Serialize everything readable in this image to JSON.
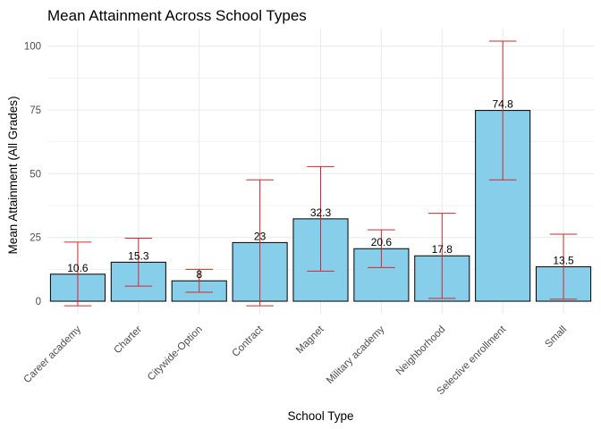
{
  "chart_data": {
    "type": "bar",
    "title": "Mean Attainment Across School Types",
    "xlabel": "School Type",
    "ylabel": "Mean Attainment (All Grades)",
    "categories": [
      "Career academy",
      "Charter",
      "Citywide-Option",
      "Contract",
      "Magnet",
      "Military academy",
      "Neighborhood",
      "Selective enrollment",
      "Small"
    ],
    "values": [
      10.6,
      15.3,
      8,
      23,
      32.3,
      20.6,
      17.8,
      74.8,
      13.5
    ],
    "data_labels": [
      "10.6",
      "15.3",
      "8",
      "23",
      "32.3",
      "20.6",
      "17.8",
      "74.8",
      "13.5"
    ],
    "error_low": [
      -1.8,
      5.9,
      3.5,
      -1.8,
      11.8,
      13.2,
      1.1,
      47.6,
      0.8
    ],
    "error_high": [
      23.2,
      24.7,
      12.5,
      47.6,
      52.8,
      28.0,
      34.5,
      102.0,
      26.3
    ],
    "ylim": [
      -4.9,
      106.9
    ],
    "yticks": [
      0,
      25,
      50,
      75,
      100
    ],
    "ytick_labels": [
      "0",
      "25",
      "50",
      "75",
      "100"
    ],
    "grid": true,
    "legend": "none",
    "colors": {
      "bar_fill": "#87ceeb",
      "bar_stroke": "#000000",
      "error_bar": "#d62728",
      "grid": "#ebebeb"
    }
  }
}
